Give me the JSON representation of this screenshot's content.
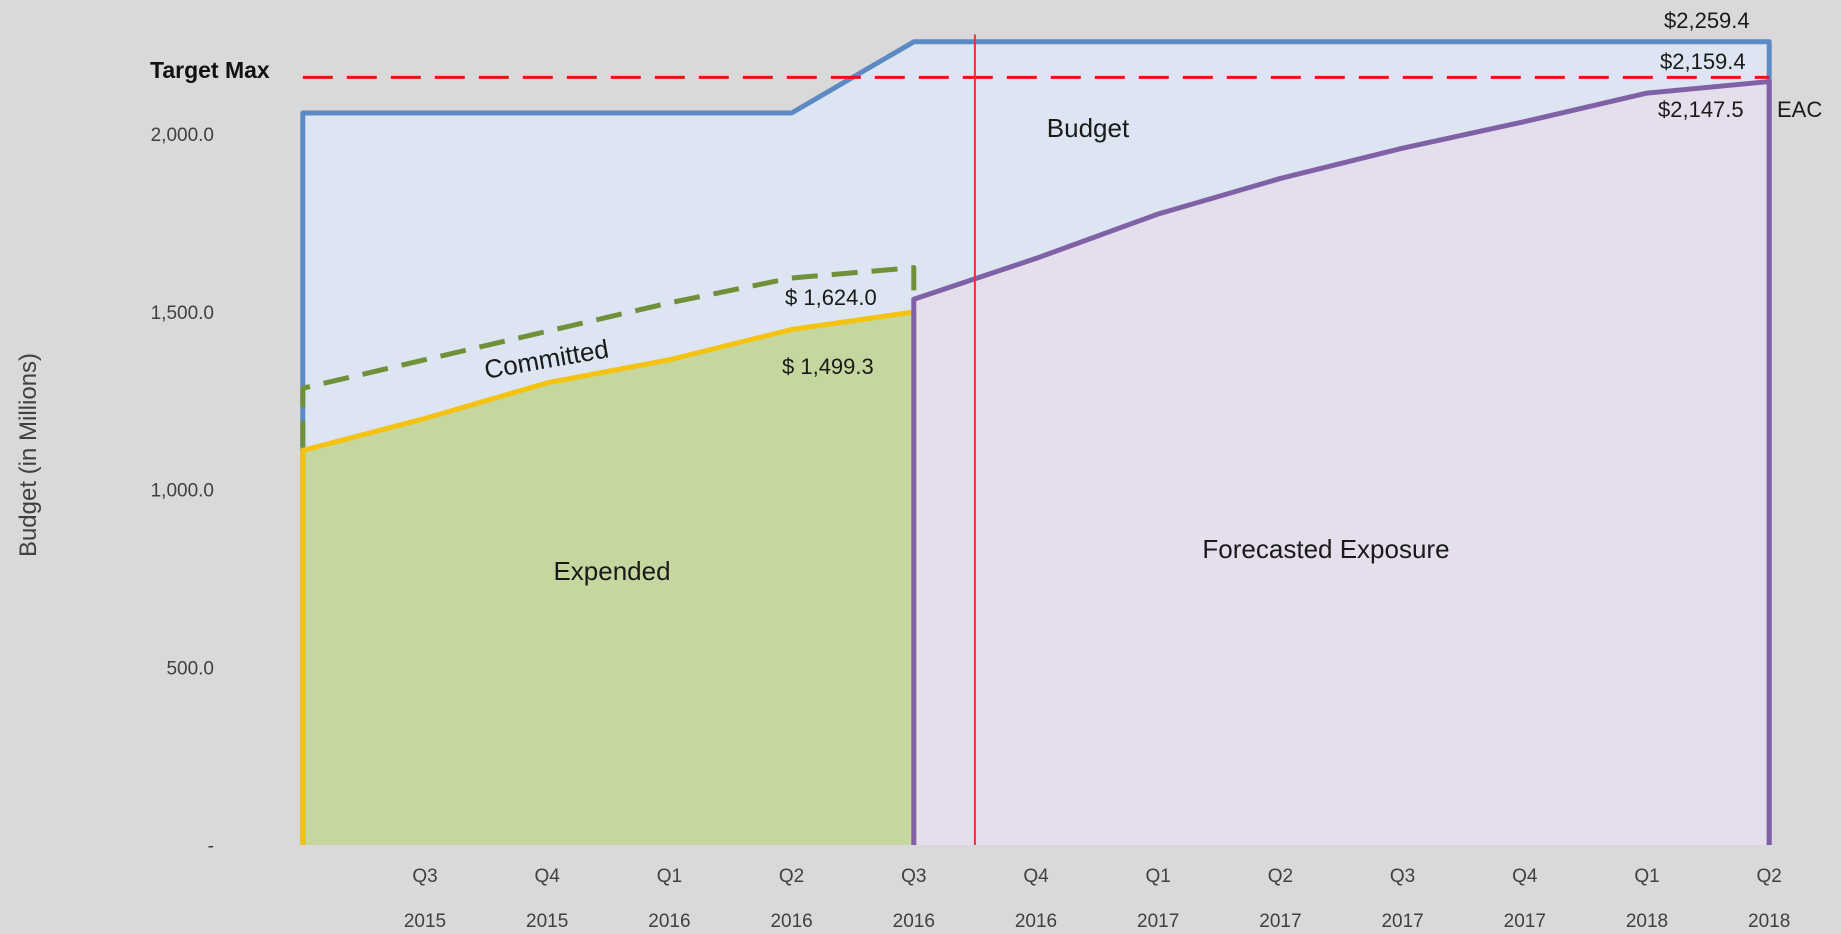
{
  "chart_data": {
    "type": "area",
    "ylabel": "Budget (in Millions)",
    "ylim": [
      0,
      2300
    ],
    "y_ticks": [
      {
        "value": 0,
        "label": "-"
      },
      {
        "value": 500,
        "label": "500.0"
      },
      {
        "value": 1000,
        "label": "1,000.0"
      },
      {
        "value": 1500,
        "label": "1,500.0"
      },
      {
        "value": 2000,
        "label": "2,000.0"
      }
    ],
    "x_ticks": [
      {
        "q": "Q3",
        "y": "2015"
      },
      {
        "q": "Q4",
        "y": "2015"
      },
      {
        "q": "Q1",
        "y": "2016"
      },
      {
        "q": "Q2",
        "y": "2016"
      },
      {
        "q": "Q3",
        "y": "2016"
      },
      {
        "q": "Q4",
        "y": "2016"
      },
      {
        "q": "Q1",
        "y": "2017"
      },
      {
        "q": "Q2",
        "y": "2017"
      },
      {
        "q": "Q3",
        "y": "2017"
      },
      {
        "q": "Q4",
        "y": "2017"
      },
      {
        "q": "Q1",
        "y": "2018"
      },
      {
        "q": "Q2",
        "y": "2018"
      }
    ],
    "x_start": -1,
    "current_marker_x": 4.5,
    "series": [
      {
        "name": "Budget",
        "color": "#5b8ac5",
        "fill": "#dce5f1",
        "x": [
          -1,
          -1,
          3,
          4,
          11,
          11
        ],
        "values": [
          0,
          2059,
          2059,
          2259.4,
          2259.4,
          0
        ]
      },
      {
        "name": "Committed",
        "color": "#70903a",
        "dashed": true,
        "x": [
          -1,
          -1,
          0,
          1,
          2,
          3,
          4,
          4
        ],
        "values": [
          1120,
          1285,
          1365,
          1445,
          1525,
          1595,
          1624,
          1560
        ]
      },
      {
        "name": "Expended",
        "color": "#f5c210",
        "fill": "#c5d79f",
        "x": [
          -1,
          -1,
          0,
          1,
          2,
          3,
          4,
          4
        ],
        "values": [
          0,
          1110,
          1200,
          1300,
          1365,
          1450,
          1499.3,
          0
        ]
      },
      {
        "name": "Forecasted Exposure",
        "color": "#8061a5",
        "fill": "#e5dfed",
        "x": [
          4,
          4,
          5,
          6,
          7,
          8,
          9,
          10,
          11,
          11
        ],
        "values": [
          0,
          1535,
          1650,
          1775,
          1875,
          1960,
          2035,
          2115,
          2147.5,
          0
        ]
      },
      {
        "name": "Target Max",
        "color": "#ee1111",
        "dashed": true,
        "x": [
          -1,
          11
        ],
        "values": [
          2159.4,
          2159.4
        ]
      }
    ],
    "annotations": {
      "target_max": "Target Max",
      "budget_end": "$2,259.4",
      "target_end": "$2,159.4",
      "eac_value": "$2,147.5",
      "eac_label": "EAC",
      "committed_value": "$ 1,624.0",
      "expended_value": "$ 1,499.3",
      "committed_label": "Committed",
      "budget_label": "Budget",
      "expended_label": "Expended",
      "forecast_label": "Forecasted Exposure"
    }
  }
}
